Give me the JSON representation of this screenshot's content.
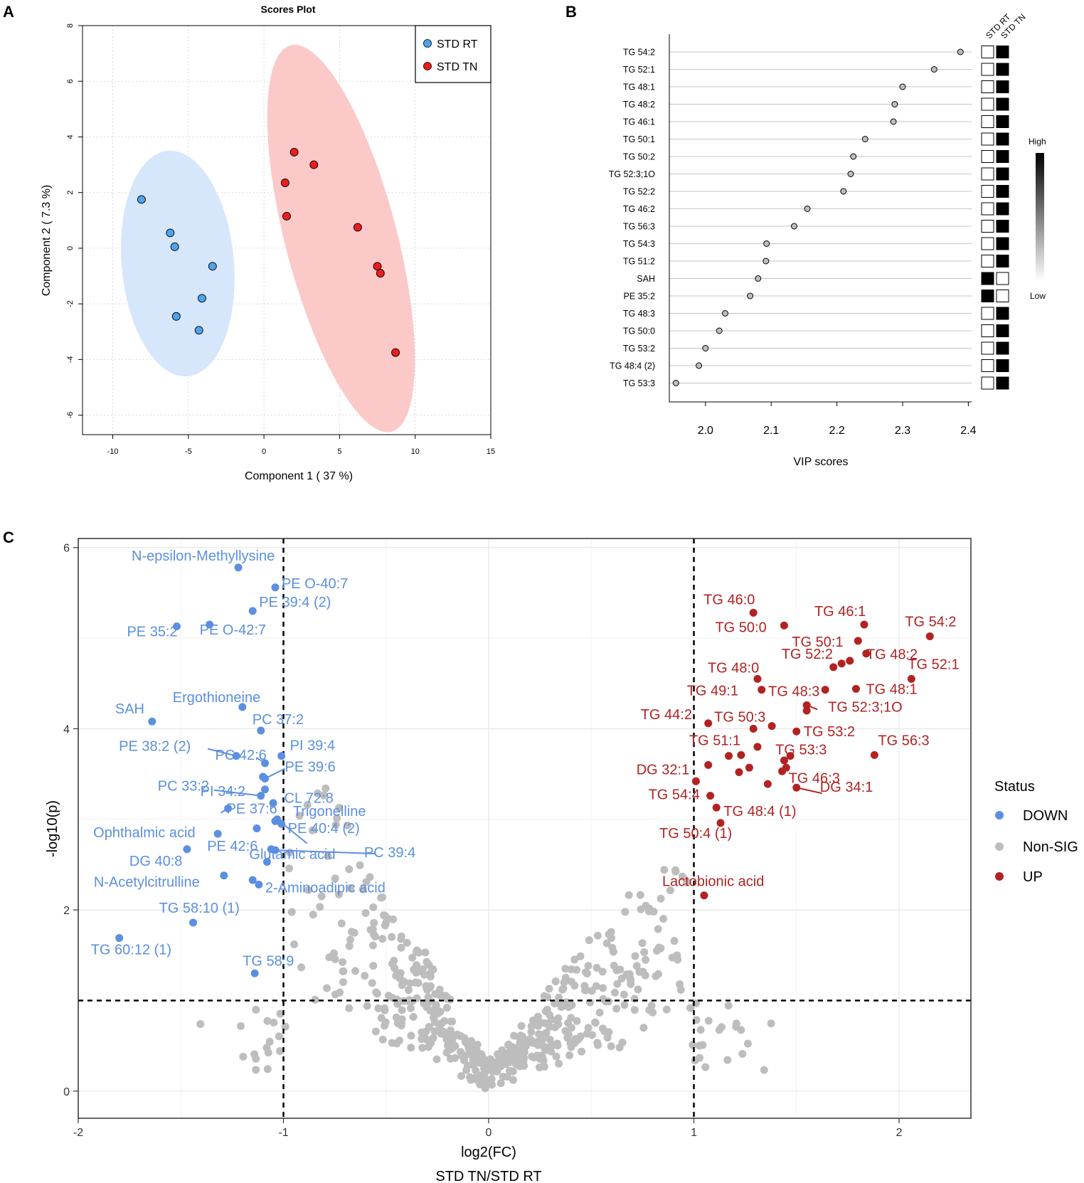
{
  "panels": {
    "a": "A",
    "b": "B",
    "c": "C"
  },
  "colors": {
    "rt_fill": "#4da3ee",
    "tn_fill": "#ee1c1c",
    "rt_ellipse": "#d6e6fb",
    "tn_ellipse": "#fcc9c9",
    "down": "#5b8fe0",
    "nonsig": "#bdbdbd",
    "up": "#b22222"
  },
  "chart_data": [
    {
      "type": "scatter",
      "title": "Scores Plot",
      "xlabel": "Component 1 ( 37 %)",
      "ylabel": "Component 2 ( 7.3 %)",
      "xlim": [
        -12,
        15
      ],
      "ylim": [
        -6.7,
        8
      ],
      "xticks": [
        -10,
        -5,
        0,
        5,
        10,
        15
      ],
      "yticks": [
        -6,
        -4,
        -2,
        0,
        2,
        4,
        6,
        8
      ],
      "legend": [
        "STD RT",
        "STD TN"
      ],
      "series": [
        {
          "name": "STD RT",
          "points": [
            [
              -8.1,
              1.75
            ],
            [
              -6.2,
              0.55
            ],
            [
              -5.9,
              0.05
            ],
            [
              -3.4,
              -0.65
            ],
            [
              -4.1,
              -1.8
            ],
            [
              -5.8,
              -2.45
            ],
            [
              -4.3,
              -2.95
            ]
          ],
          "ellipse": {
            "cx": -5.7,
            "cy": -0.55,
            "rx": 4.2,
            "ry": 3.6,
            "angle_deg": -60
          }
        },
        {
          "name": "STD TN",
          "points": [
            [
              2.0,
              3.45
            ],
            [
              3.3,
              3.0
            ],
            [
              1.4,
              2.35
            ],
            [
              1.5,
              1.15
            ],
            [
              6.2,
              0.75
            ],
            [
              7.5,
              -0.65
            ],
            [
              7.7,
              -0.9
            ],
            [
              8.7,
              -3.75
            ]
          ],
          "ellipse": {
            "cx": 5.1,
            "cy": 0.35,
            "rx": 7.8,
            "ry": 3.4,
            "angle_deg": -60
          }
        }
      ]
    },
    {
      "type": "dot",
      "xlabel": "VIP scores",
      "xlim": [
        1.945,
        2.405
      ],
      "xticks": [
        "2.0",
        "2.1",
        "2.2",
        "2.3",
        "2.4"
      ],
      "heat_columns": [
        "STD RT",
        "STD TN"
      ],
      "heat_legend": {
        "high": "High",
        "low": "Low"
      },
      "features": [
        {
          "name": "TG 54:2",
          "vip": 2.388,
          "rt": "low",
          "tn": "high"
        },
        {
          "name": "TG 52:1",
          "vip": 2.348,
          "rt": "low",
          "tn": "high"
        },
        {
          "name": "TG 48:1",
          "vip": 2.3,
          "rt": "low",
          "tn": "high"
        },
        {
          "name": "TG 48:2",
          "vip": 2.288,
          "rt": "low",
          "tn": "high"
        },
        {
          "name": "TG 46:1",
          "vip": 2.286,
          "rt": "low",
          "tn": "high"
        },
        {
          "name": "TG 50:1",
          "vip": 2.243,
          "rt": "low",
          "tn": "high"
        },
        {
          "name": "TG 50:2",
          "vip": 2.225,
          "rt": "low",
          "tn": "high"
        },
        {
          "name": "TG 52:3;1O",
          "vip": 2.221,
          "rt": "low",
          "tn": "high"
        },
        {
          "name": "TG 52:2",
          "vip": 2.21,
          "rt": "low",
          "tn": "high"
        },
        {
          "name": "TG 46:2",
          "vip": 2.155,
          "rt": "low",
          "tn": "high"
        },
        {
          "name": "TG 56:3",
          "vip": 2.135,
          "rt": "low",
          "tn": "high"
        },
        {
          "name": "TG 54:3",
          "vip": 2.093,
          "rt": "low",
          "tn": "high"
        },
        {
          "name": "TG 51:2",
          "vip": 2.092,
          "rt": "low",
          "tn": "high"
        },
        {
          "name": "SAH",
          "vip": 2.08,
          "rt": "high",
          "tn": "low"
        },
        {
          "name": "PE 35:2",
          "vip": 2.068,
          "rt": "high",
          "tn": "low"
        },
        {
          "name": "TG 48:3",
          "vip": 2.03,
          "rt": "low",
          "tn": "high"
        },
        {
          "name": "TG 50:0",
          "vip": 2.021,
          "rt": "low",
          "tn": "high"
        },
        {
          "name": "TG 53:2",
          "vip": 2.0,
          "rt": "low",
          "tn": "high"
        },
        {
          "name": "TG 48:4 (2)",
          "vip": 1.99,
          "rt": "low",
          "tn": "high"
        },
        {
          "name": "TG 53:3",
          "vip": 1.955,
          "rt": "low",
          "tn": "high"
        }
      ]
    },
    {
      "type": "scatter",
      "xlabel": "log2(FC)",
      "xlabel2": "STD TN/STD RT",
      "ylabel": "-log10(p)",
      "xlim": [
        -2.0,
        2.35
      ],
      "ylim": [
        -0.3,
        6.1
      ],
      "xticks": [
        -2,
        -1,
        0,
        1,
        2
      ],
      "xtick_labels": [
        "-2",
        "-1",
        "0",
        "1",
        "2"
      ],
      "yticks": [
        0,
        2,
        4,
        6
      ],
      "ytick_labels": [
        "0",
        "2",
        "4",
        "6"
      ],
      "thresholds": {
        "fc": [
          -1,
          1
        ],
        "p": 1.0
      },
      "legend_title": "Status",
      "legend": [
        "DOWN",
        "Non-SIG",
        "UP"
      ],
      "down_points": [
        {
          "label": "N-epsilon-Methyllysine",
          "x": -1.22,
          "y": 5.78
        },
        {
          "label": "PE O-40:7",
          "x": -1.04,
          "y": 5.56
        },
        {
          "label": "PE 39:4 (2)",
          "x": -1.15,
          "y": 5.3
        },
        {
          "label": "PE 35:2",
          "x": -1.52,
          "y": 5.13
        },
        {
          "label": "PE O-42:7",
          "x": -1.36,
          "y": 5.15
        },
        {
          "label": "Ergothioneine",
          "x": -1.2,
          "y": 4.24
        },
        {
          "label": "SAH",
          "x": -1.64,
          "y": 4.08
        },
        {
          "label": "PC 37:2",
          "x": -1.11,
          "y": 3.98
        },
        {
          "label": "PE 38:2 (2)",
          "x": -1.23,
          "y": 3.7
        },
        {
          "label": "PC 42:6",
          "x": -1.09,
          "y": 3.62
        },
        {
          "label": "PI 39:4",
          "x": -1.01,
          "y": 3.7
        },
        {
          "label": "PI 34:2",
          "x": -1.1,
          "y": 3.47
        },
        {
          "label": "PE 39:6",
          "x": -1.09,
          "y": 3.45
        },
        {
          "label": "PC 33:2",
          "x": -1.11,
          "y": 3.26
        },
        {
          "label": "CL 72:8",
          "x": -1.09,
          "y": 3.33
        },
        {
          "label": "PE 37:6",
          "x": -1.27,
          "y": 3.12
        },
        {
          "label": "Trigonelline",
          "x": -1.03,
          "y": 3.0
        },
        {
          "label": "Ophthalmic acid",
          "x": -1.32,
          "y": 2.84
        },
        {
          "label": "PE 40:4 (2)",
          "x": -1.01,
          "y": 2.95
        },
        {
          "label": "PE 42:6",
          "x": -1.06,
          "y": 2.67
        },
        {
          "label": "PC 39:4",
          "x": -1.04,
          "y": 2.66
        },
        {
          "label": "DG 40:8",
          "x": -1.47,
          "y": 2.67
        },
        {
          "label": "Glutamic acid",
          "x": -1.08,
          "y": 2.53
        },
        {
          "label": "N-Acetylcitrulline",
          "x": -1.29,
          "y": 2.38
        },
        {
          "label": "2-Aminoadipic acid",
          "x": -1.12,
          "y": 2.28
        },
        {
          "label": "TG 58:10 (1)",
          "x": -1.44,
          "y": 1.86
        },
        {
          "label": "TG 60:12 (1)",
          "x": -1.8,
          "y": 1.69
        },
        {
          "label": "TG 58:9",
          "x": -1.14,
          "y": 1.3
        },
        {
          "label": "",
          "x": -1.15,
          "y": 2.33
        },
        {
          "label": "",
          "x": -1.13,
          "y": 2.9
        },
        {
          "label": "",
          "x": -1.04,
          "y": 2.98
        },
        {
          "label": "",
          "x": -1.05,
          "y": 3.18
        }
      ],
      "up_points": [
        {
          "label": "TG 46:0",
          "x": 1.29,
          "y": 5.28
        },
        {
          "label": "TG 46:1",
          "x": 1.83,
          "y": 5.15
        },
        {
          "label": "TG 54:2",
          "x": 2.15,
          "y": 5.02
        },
        {
          "label": "TG 50:0",
          "x": 1.44,
          "y": 5.14
        },
        {
          "label": "TG 50:1",
          "x": 1.8,
          "y": 4.97
        },
        {
          "label": "TG 48:2",
          "x": 1.84,
          "y": 4.83
        },
        {
          "label": "TG 52:2",
          "x": 1.76,
          "y": 4.75
        },
        {
          "label": "TG 52:1",
          "x": 2.06,
          "y": 4.55
        },
        {
          "label": "TG 48:0",
          "x": 1.31,
          "y": 4.55
        },
        {
          "label": "TG 49:1",
          "x": 1.33,
          "y": 4.43
        },
        {
          "label": "TG 48:3",
          "x": 1.64,
          "y": 4.43
        },
        {
          "label": "TG 48:1",
          "x": 1.79,
          "y": 4.44
        },
        {
          "label": "TG 52:3;1O",
          "x": 1.55,
          "y": 4.26
        },
        {
          "label": "TG 44:2",
          "x": 1.07,
          "y": 4.06
        },
        {
          "label": "TG 50:3",
          "x": 1.29,
          "y": 4.0
        },
        {
          "label": "TG 53:2",
          "x": 1.5,
          "y": 3.97
        },
        {
          "label": "TG 51:1",
          "x": 1.23,
          "y": 3.71
        },
        {
          "label": "TG 53:3",
          "x": 1.47,
          "y": 3.7
        },
        {
          "label": "TG 56:3",
          "x": 1.88,
          "y": 3.71
        },
        {
          "label": "DG 32:1",
          "x": 1.07,
          "y": 3.6
        },
        {
          "label": "TG 46:3",
          "x": 1.43,
          "y": 3.53
        },
        {
          "label": "DG 34:1",
          "x": 1.5,
          "y": 3.35
        },
        {
          "label": "TG 54:4",
          "x": 1.08,
          "y": 3.26
        },
        {
          "label": "TG 48:4 (1)",
          "x": 1.11,
          "y": 3.13
        },
        {
          "label": "TG 50:4 (1)",
          "x": 1.13,
          "y": 2.96
        },
        {
          "label": "Lactobionic acid",
          "x": 1.05,
          "y": 2.16
        },
        {
          "label": "",
          "x": 1.17,
          "y": 3.7
        },
        {
          "label": "",
          "x": 1.31,
          "y": 3.8
        },
        {
          "label": "",
          "x": 1.38,
          "y": 4.03
        },
        {
          "label": "",
          "x": 1.27,
          "y": 3.57
        },
        {
          "label": "",
          "x": 1.22,
          "y": 3.52
        },
        {
          "label": "",
          "x": 1.44,
          "y": 3.65
        },
        {
          "label": "",
          "x": 1.55,
          "y": 4.2
        },
        {
          "label": "",
          "x": 1.68,
          "y": 4.68
        },
        {
          "label": "",
          "x": 1.72,
          "y": 4.72
        },
        {
          "label": "",
          "x": 1.45,
          "y": 3.57
        },
        {
          "label": "",
          "x": 1.36,
          "y": 3.39
        },
        {
          "label": "",
          "x": 1.01,
          "y": 3.42
        }
      ]
    }
  ]
}
